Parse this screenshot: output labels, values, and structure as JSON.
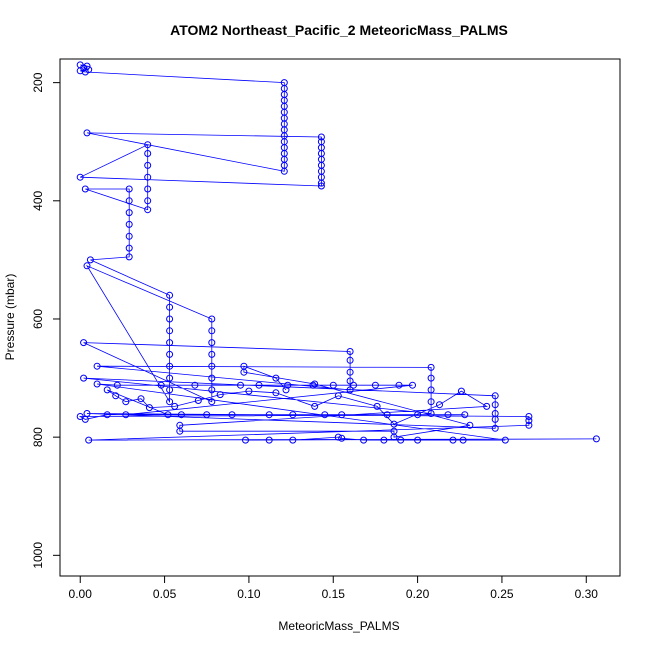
{
  "chart_data": {
    "type": "scatter",
    "title": "ATOM2 Northeast_Pacific_2 MeteoricMass_PALMS",
    "xlabel": "MeteoricMass_PALMS",
    "ylabel": "Pressure (mbar)",
    "xlim": [
      -0.012,
      0.32
    ],
    "ylim": [
      1035,
      160
    ],
    "y_reversed": true,
    "x_ticks": [
      0.0,
      0.05,
      0.1,
      0.15,
      0.2,
      0.25,
      0.3
    ],
    "x_tick_labels": [
      "0.00",
      "0.05",
      "0.10",
      "0.15",
      "0.20",
      "0.25",
      "0.30"
    ],
    "y_ticks": [
      200,
      400,
      600,
      800,
      1000
    ],
    "y_tick_labels": [
      "200",
      "400",
      "600",
      "800",
      "1000"
    ],
    "grid": false,
    "legend": "none",
    "marker": "open-circle",
    "line_connected": true,
    "color": "#0000ff",
    "series": [
      {
        "points": [
          [
            0.0,
            170
          ],
          [
            0.004,
            172
          ],
          [
            0.002,
            175
          ],
          [
            0.005,
            178
          ],
          [
            0.0,
            180
          ],
          [
            0.003,
            182
          ],
          [
            0.121,
            200
          ],
          [
            0.121,
            210
          ],
          [
            0.121,
            220
          ],
          [
            0.121,
            230
          ],
          [
            0.121,
            240
          ],
          [
            0.121,
            250
          ],
          [
            0.121,
            260
          ],
          [
            0.121,
            270
          ],
          [
            0.121,
            280
          ],
          [
            0.121,
            290
          ],
          [
            0.121,
            300
          ],
          [
            0.121,
            310
          ],
          [
            0.121,
            320
          ],
          [
            0.121,
            330
          ],
          [
            0.121,
            340
          ],
          [
            0.121,
            350
          ],
          [
            0.004,
            285
          ],
          [
            0.143,
            292
          ],
          [
            0.143,
            300
          ],
          [
            0.143,
            310
          ],
          [
            0.143,
            320
          ],
          [
            0.143,
            330
          ],
          [
            0.143,
            340
          ],
          [
            0.143,
            350
          ],
          [
            0.143,
            360
          ],
          [
            0.143,
            370
          ],
          [
            0.143,
            375
          ],
          [
            0.0,
            360
          ],
          [
            0.04,
            305
          ],
          [
            0.04,
            320
          ],
          [
            0.04,
            340
          ],
          [
            0.04,
            360
          ],
          [
            0.04,
            380
          ],
          [
            0.04,
            400
          ],
          [
            0.04,
            415
          ],
          [
            0.003,
            380
          ],
          [
            0.029,
            380
          ],
          [
            0.029,
            400
          ],
          [
            0.029,
            420
          ],
          [
            0.029,
            440
          ],
          [
            0.029,
            460
          ],
          [
            0.029,
            480
          ],
          [
            0.029,
            495
          ],
          [
            0.006,
            500
          ],
          [
            0.053,
            560
          ],
          [
            0.053,
            580
          ],
          [
            0.053,
            600
          ],
          [
            0.053,
            620
          ],
          [
            0.053,
            640
          ],
          [
            0.053,
            660
          ],
          [
            0.053,
            680
          ],
          [
            0.053,
            700
          ],
          [
            0.053,
            720
          ],
          [
            0.053,
            740
          ],
          [
            0.004,
            510
          ],
          [
            0.078,
            600
          ],
          [
            0.078,
            620
          ],
          [
            0.078,
            640
          ],
          [
            0.078,
            660
          ],
          [
            0.078,
            680
          ],
          [
            0.078,
            700
          ],
          [
            0.078,
            720
          ],
          [
            0.078,
            740
          ],
          [
            0.002,
            640
          ],
          [
            0.16,
            655
          ],
          [
            0.16,
            670
          ],
          [
            0.16,
            690
          ],
          [
            0.16,
            705
          ],
          [
            0.16,
            720
          ],
          [
            0.01,
            680
          ],
          [
            0.208,
            682
          ],
          [
            0.208,
            700
          ],
          [
            0.208,
            720
          ],
          [
            0.208,
            740
          ],
          [
            0.208,
            760
          ],
          [
            0.002,
            700
          ],
          [
            0.246,
            730
          ],
          [
            0.246,
            745
          ],
          [
            0.246,
            760
          ],
          [
            0.246,
            770
          ],
          [
            0.246,
            785
          ],
          [
            0.004,
            760
          ],
          [
            0.266,
            765
          ],
          [
            0.266,
            772
          ],
          [
            0.266,
            780
          ],
          [
            0.005,
            805
          ],
          [
            0.306,
            803
          ],
          [
            0.098,
            805
          ],
          [
            0.112,
            805
          ],
          [
            0.126,
            805
          ],
          [
            0.153,
            800
          ],
          [
            0.155,
            802
          ],
          [
            0.168,
            805
          ],
          [
            0.18,
            805
          ],
          [
            0.19,
            805
          ],
          [
            0.2,
            805
          ],
          [
            0.221,
            805
          ],
          [
            0.227,
            805
          ],
          [
            0.252,
            805
          ],
          [
            0.01,
            710
          ],
          [
            0.022,
            712
          ],
          [
            0.048,
            712
          ],
          [
            0.068,
            712
          ],
          [
            0.095,
            712
          ],
          [
            0.106,
            712
          ],
          [
            0.123,
            712
          ],
          [
            0.138,
            712
          ],
          [
            0.15,
            712
          ],
          [
            0.162,
            712
          ],
          [
            0.175,
            712
          ],
          [
            0.189,
            712
          ],
          [
            0.197,
            712
          ],
          [
            0.027,
            762
          ],
          [
            0.06,
            762
          ],
          [
            0.075,
            762
          ],
          [
            0.09,
            762
          ],
          [
            0.112,
            762
          ],
          [
            0.126,
            762
          ],
          [
            0.145,
            762
          ],
          [
            0.155,
            762
          ],
          [
            0.182,
            762
          ],
          [
            0.2,
            762
          ],
          [
            0.218,
            762
          ],
          [
            0.228,
            762
          ],
          [
            0.0,
            765
          ],
          [
            0.003,
            770
          ],
          [
            0.016,
            762
          ],
          [
            0.052,
            762
          ],
          [
            0.016,
            720
          ],
          [
            0.021,
            730
          ],
          [
            0.027,
            740
          ],
          [
            0.036,
            735
          ],
          [
            0.041,
            750
          ],
          [
            0.056,
            748
          ],
          [
            0.07,
            738
          ],
          [
            0.083,
            728
          ],
          [
            0.1,
            722
          ],
          [
            0.116,
            725
          ],
          [
            0.139,
            748
          ],
          [
            0.153,
            730
          ],
          [
            0.176,
            748
          ],
          [
            0.186,
            778
          ],
          [
            0.213,
            745
          ],
          [
            0.226,
            722
          ],
          [
            0.241,
            748
          ],
          [
            0.059,
            780
          ],
          [
            0.059,
            790
          ],
          [
            0.186,
            790
          ],
          [
            0.186,
            800
          ],
          [
            0.231,
            780
          ],
          [
            0.139,
            710
          ],
          [
            0.097,
            690
          ],
          [
            0.097,
            680
          ],
          [
            0.116,
            700
          ],
          [
            0.122,
            720
          ]
        ]
      }
    ]
  }
}
